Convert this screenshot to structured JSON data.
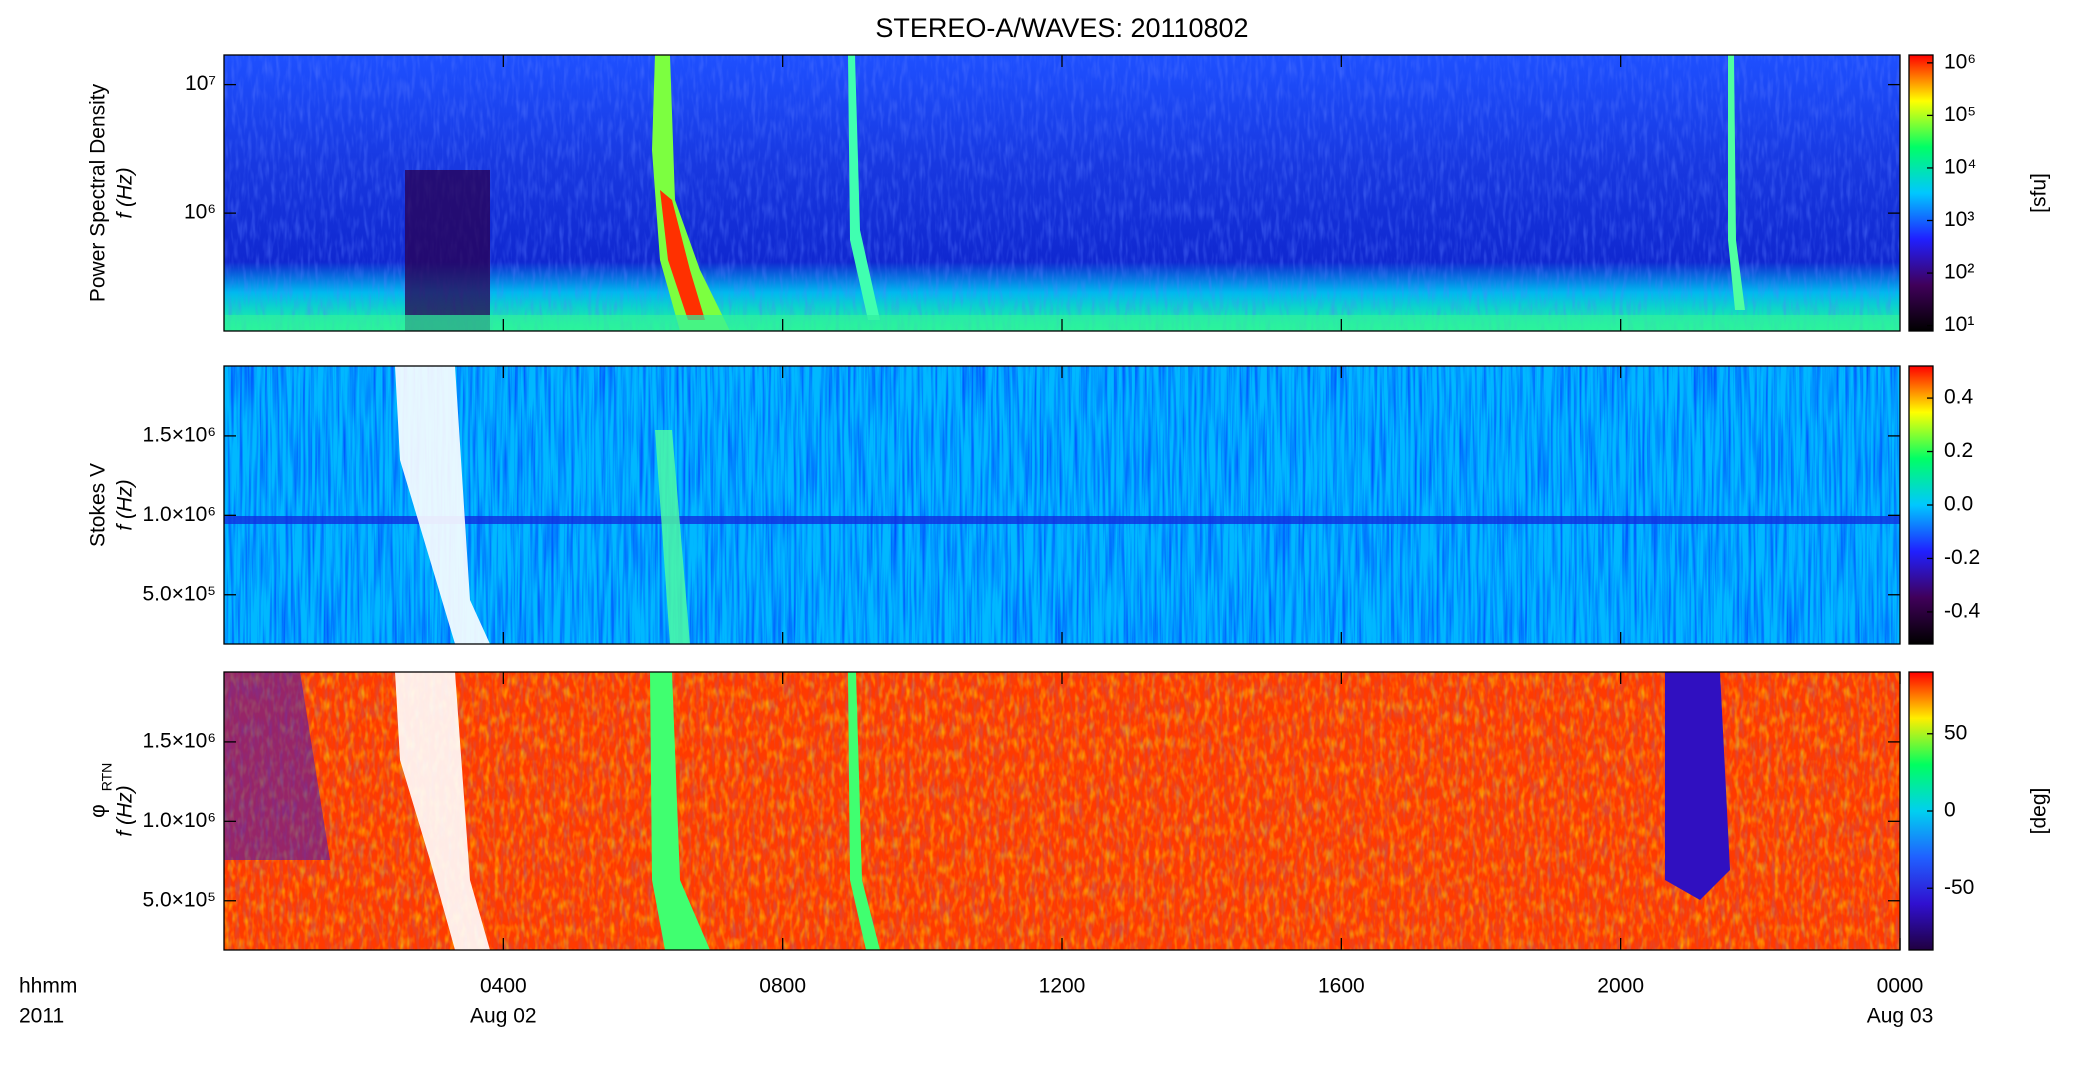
{
  "chart_data": [
    {
      "type": "heatmap",
      "title": "STEREO-A/WAVES: 20110802",
      "ylabel": "Power Spectral Density",
      "ylabel2": "f (Hz)",
      "log": true,
      "ylim": [
        121000,
        17000000
      ],
      "yticks": [
        {
          "value": 1000000,
          "label": "10⁶"
        },
        {
          "value": 10000000,
          "label": "10⁷"
        }
      ],
      "xlim": [
        0,
        24
      ],
      "xticks": [
        4,
        8,
        12,
        16,
        20
      ],
      "clog": true,
      "clim": [
        7.9,
        1410000
      ],
      "cticks": [
        {
          "value": 10,
          "label": "10¹"
        },
        {
          "value": 100,
          "label": "10²"
        },
        {
          "value": 1000,
          "label": "10³"
        },
        {
          "value": 10000,
          "label": "10⁴"
        },
        {
          "value": 100000,
          "label": "10⁵"
        },
        {
          "value": 1000000,
          "label": "10⁶"
        }
      ],
      "clabel": "[sfu]",
      "colormap": [
        "#000000",
        "#40005a",
        "#2020ff",
        "#00c8ff",
        "#00ff66",
        "#ffff00",
        "#ff0000"
      ]
    },
    {
      "type": "heatmap",
      "ylabel": "Stokes V",
      "ylabel2": "f (Hz)",
      "log": false,
      "ylim": [
        190000,
        1940000
      ],
      "yticks": [
        {
          "value": 500000,
          "label": "5.0×10⁵"
        },
        {
          "value": 1000000,
          "label": "1.0×10⁶"
        },
        {
          "value": 1500000,
          "label": "1.5×10⁶"
        }
      ],
      "xlim": [
        0,
        24
      ],
      "xticks": [
        4,
        8,
        12,
        16,
        20
      ],
      "clog": false,
      "clim": [
        -0.52,
        0.52
      ],
      "cticks": [
        -0.4,
        -0.2,
        {
          "value": 0,
          "label": "0.0"
        },
        0.2,
        0.4
      ],
      "colormap": [
        "#000000",
        "#40005a",
        "#2020ff",
        "#00c8ff",
        "#00ff66",
        "#ffff00",
        "#ff0000"
      ]
    },
    {
      "type": "heatmap",
      "ylabel": "φ",
      "ylabel_sub": "RTN",
      "ylabel2": "f (Hz)",
      "log": false,
      "ylim": [
        190000,
        1940000
      ],
      "yticks": [
        {
          "value": 500000,
          "label": "5.0×10⁵"
        },
        {
          "value": 1000000,
          "label": "1.0×10⁶"
        },
        {
          "value": 1500000,
          "label": "1.5×10⁶"
        }
      ],
      "xlim": [
        0,
        24
      ],
      "xticks": [
        {
          "value": 4,
          "label": "0400"
        },
        {
          "value": 8,
          "label": "0800"
        },
        {
          "value": 12,
          "label": "1200"
        },
        {
          "value": 16,
          "label": "1600"
        },
        {
          "value": 20,
          "label": "2000"
        },
        {
          "value": 24,
          "label": "0000"
        }
      ],
      "date_labels": [
        {
          "value": 4,
          "label": "Aug 02"
        },
        {
          "value": 24,
          "label": "Aug 03"
        }
      ],
      "xunit": "hhmm",
      "year": "2011",
      "clog": false,
      "clim": [
        -90,
        90
      ],
      "cticks": [
        -50,
        0,
        50
      ],
      "clabel": "[deg]",
      "colormap": [
        "#200040",
        "#3010d0",
        "#2060ff",
        "#00d0f0",
        "#00ff60",
        "#ffee00",
        "#ff0000"
      ]
    }
  ]
}
